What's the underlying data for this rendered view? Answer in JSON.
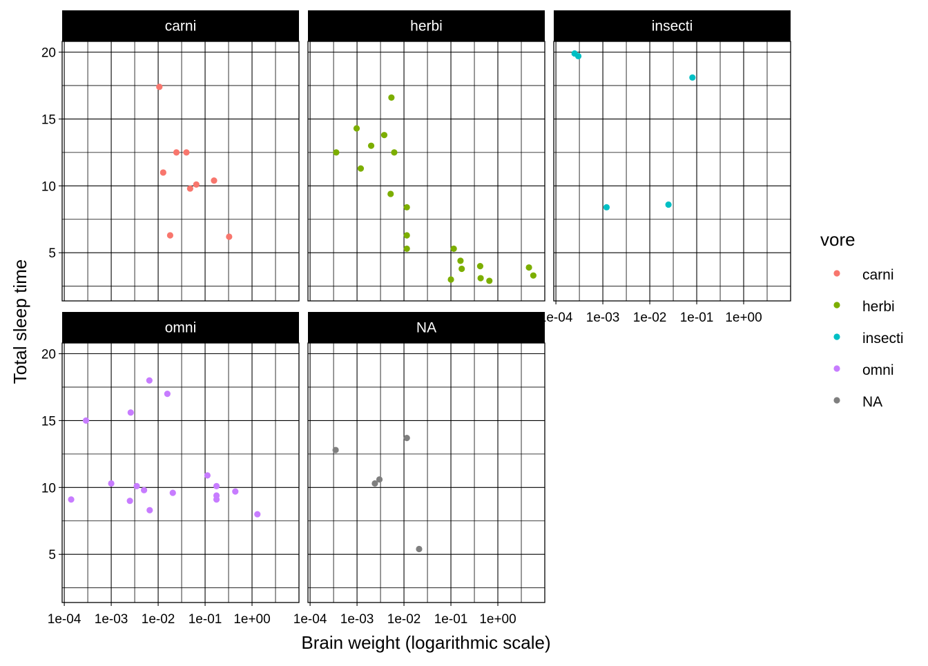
{
  "chart_data": {
    "type": "scatter",
    "xlabel": "Brain weight (logarithmic scale)",
    "ylabel": "Total sleep time",
    "x_scale": "log10",
    "xlim": [
      9e-05,
      10
    ],
    "ylim": [
      1.4,
      20.8
    ],
    "x_ticks": [
      {
        "value": 0.0001,
        "label": "1e-04"
      },
      {
        "value": 0.001,
        "label": "1e-03"
      },
      {
        "value": 0.01,
        "label": "1e-02"
      },
      {
        "value": 0.1,
        "label": "1e-01"
      },
      {
        "value": 1,
        "label": "1e+00"
      }
    ],
    "y_ticks": [
      5,
      10,
      15,
      20
    ],
    "grid": true,
    "legend": {
      "title": "vore",
      "position": "right",
      "entries": [
        {
          "label": "carni",
          "color": "#F8766D"
        },
        {
          "label": "herbi",
          "color": "#7CAE00"
        },
        {
          "label": "insecti",
          "color": "#00BFC4"
        },
        {
          "label": "omni",
          "color": "#C77CFF"
        },
        {
          "label": "NA",
          "color": "#7F7F7F"
        }
      ]
    },
    "panels": [
      {
        "name": "carni",
        "color": "#F8766D",
        "points": [
          {
            "x": 0.0106,
            "y": 17.4
          },
          {
            "x": 0.0128,
            "y": 11.0
          },
          {
            "x": 0.018,
            "y": 6.3
          },
          {
            "x": 0.0245,
            "y": 12.5
          },
          {
            "x": 0.04,
            "y": 12.5
          },
          {
            "x": 0.048,
            "y": 9.8
          },
          {
            "x": 0.065,
            "y": 10.1
          },
          {
            "x": 0.155,
            "y": 10.4
          },
          {
            "x": 0.325,
            "y": 6.2
          }
        ]
      },
      {
        "name": "herbi",
        "color": "#7CAE00",
        "points": [
          {
            "x": 0.00036,
            "y": 12.5
          },
          {
            "x": 0.00098,
            "y": 14.3
          },
          {
            "x": 0.0012,
            "y": 11.3
          },
          {
            "x": 0.002,
            "y": 13.0
          },
          {
            "x": 0.0038,
            "y": 13.8
          },
          {
            "x": 0.0054,
            "y": 16.6
          },
          {
            "x": 0.0052,
            "y": 9.4
          },
          {
            "x": 0.0062,
            "y": 12.5
          },
          {
            "x": 0.0115,
            "y": 8.4
          },
          {
            "x": 0.0115,
            "y": 6.3
          },
          {
            "x": 0.0115,
            "y": 5.3
          },
          {
            "x": 0.1,
            "y": 3.0
          },
          {
            "x": 0.115,
            "y": 5.3
          },
          {
            "x": 0.16,
            "y": 4.4
          },
          {
            "x": 0.17,
            "y": 3.8
          },
          {
            "x": 0.42,
            "y": 4.0
          },
          {
            "x": 0.43,
            "y": 3.1
          },
          {
            "x": 0.66,
            "y": 2.9
          },
          {
            "x": 4.6,
            "y": 3.9
          },
          {
            "x": 5.7,
            "y": 3.3
          }
        ]
      },
      {
        "name": "insecti",
        "color": "#00BFC4",
        "points": [
          {
            "x": 0.00025,
            "y": 19.9
          },
          {
            "x": 0.0003,
            "y": 19.7
          },
          {
            "x": 0.0012,
            "y": 8.4
          },
          {
            "x": 0.025,
            "y": 8.6
          },
          {
            "x": 0.081,
            "y": 18.1
          }
        ]
      },
      {
        "name": "omni",
        "color": "#C77CFF",
        "points": [
          {
            "x": 0.00014,
            "y": 9.1
          },
          {
            "x": 0.00029,
            "y": 15.0
          },
          {
            "x": 0.001,
            "y": 10.3
          },
          {
            "x": 0.0025,
            "y": 9.0
          },
          {
            "x": 0.0026,
            "y": 15.6
          },
          {
            "x": 0.0035,
            "y": 10.1
          },
          {
            "x": 0.005,
            "y": 9.8
          },
          {
            "x": 0.0065,
            "y": 18.0
          },
          {
            "x": 0.0066,
            "y": 8.3
          },
          {
            "x": 0.0157,
            "y": 17.0
          },
          {
            "x": 0.0205,
            "y": 9.6
          },
          {
            "x": 0.112,
            "y": 10.9
          },
          {
            "x": 0.175,
            "y": 10.1
          },
          {
            "x": 0.175,
            "y": 9.4
          },
          {
            "x": 0.175,
            "y": 9.1
          },
          {
            "x": 0.44,
            "y": 9.7
          },
          {
            "x": 1.3,
            "y": 8.0
          }
        ]
      },
      {
        "name": "NA",
        "color": "#7F7F7F",
        "points": [
          {
            "x": 0.00035,
            "y": 12.8
          },
          {
            "x": 0.0024,
            "y": 10.3
          },
          {
            "x": 0.003,
            "y": 10.6
          },
          {
            "x": 0.0115,
            "y": 13.7
          },
          {
            "x": 0.021,
            "y": 5.4
          }
        ]
      }
    ]
  }
}
